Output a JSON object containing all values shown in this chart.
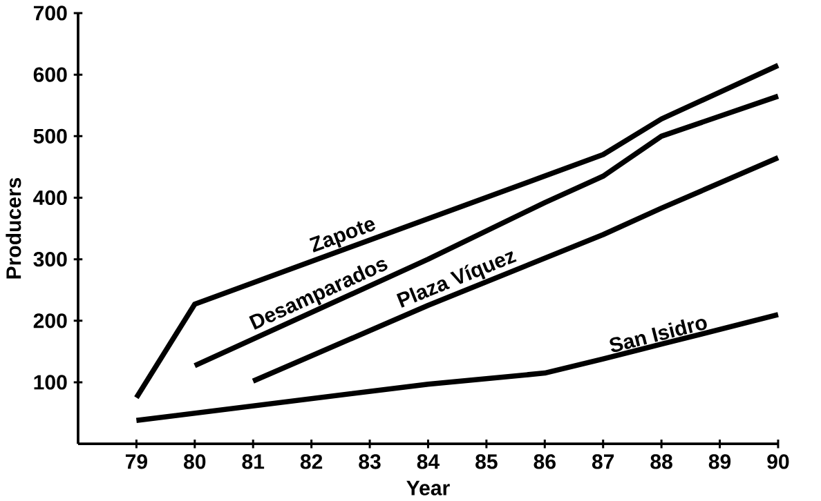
{
  "chart_data": {
    "type": "line",
    "xlabel": "Year",
    "ylabel": "Producers",
    "xlim": [
      78,
      90
    ],
    "xticks": [
      79,
      80,
      81,
      82,
      83,
      84,
      85,
      86,
      87,
      88,
      89,
      90
    ],
    "ylim": [
      0,
      700
    ],
    "yticks": [
      100,
      200,
      300,
      400,
      500,
      600,
      700
    ],
    "grid": false,
    "marker": "none",
    "line_style": "solid",
    "series": [
      {
        "name": "Zapote",
        "color": "#000000",
        "x": [
          79,
          80,
          87,
          88,
          90
        ],
        "values": [
          75,
          227,
          470,
          528,
          615
        ]
      },
      {
        "name": "Desamparados",
        "color": "#000000",
        "x": [
          80,
          84,
          86,
          87,
          88,
          90
        ],
        "values": [
          127,
          300,
          392,
          435,
          500,
          565
        ]
      },
      {
        "name": "Plaza Víquez",
        "color": "#000000",
        "x": [
          81,
          84,
          87,
          88,
          90
        ],
        "values": [
          102,
          225,
          340,
          383,
          465
        ]
      },
      {
        "name": "San Isidro",
        "color": "#000000",
        "x": [
          79,
          84,
          86,
          87,
          88,
          90
        ],
        "values": [
          38,
          97,
          115,
          138,
          162,
          210
        ]
      }
    ]
  }
}
